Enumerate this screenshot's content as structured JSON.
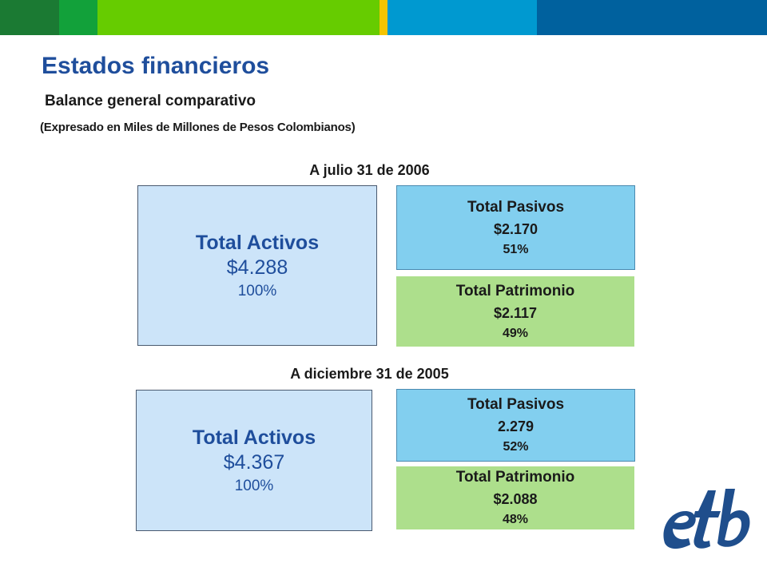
{
  "header": {
    "title": "Estados financieros",
    "subtitle": "Balance general comparativo",
    "note": "(Expresado en Miles de Millones de Pesos Colombianos)"
  },
  "brand_colors": [
    "#1b7a33",
    "#12a13a",
    "#66cc00",
    "#f5c400",
    "#0099d0",
    "#00619e"
  ],
  "periods": [
    {
      "label": "A julio 31 de 2006",
      "assets": {
        "label": "Total Activos",
        "value": "$4.288",
        "percent": "100%"
      },
      "liabilities": {
        "label": "Total Pasivos",
        "value": "$2.170",
        "percent": "51%"
      },
      "equity": {
        "label": "Total Patrimonio",
        "value": "$2.117",
        "percent": "49%"
      }
    },
    {
      "label": "A diciembre 31 de 2005",
      "assets": {
        "label": "Total Activos",
        "value": "$4.367",
        "percent": "100%"
      },
      "liabilities": {
        "label": "Total Pasivos",
        "value": "2.279",
        "percent": "52%"
      },
      "equity": {
        "label": "Total Patrimonio",
        "value": "$2.088",
        "percent": "48%"
      }
    }
  ],
  "logo": {
    "icon": "etb-logo",
    "text": "etb"
  }
}
